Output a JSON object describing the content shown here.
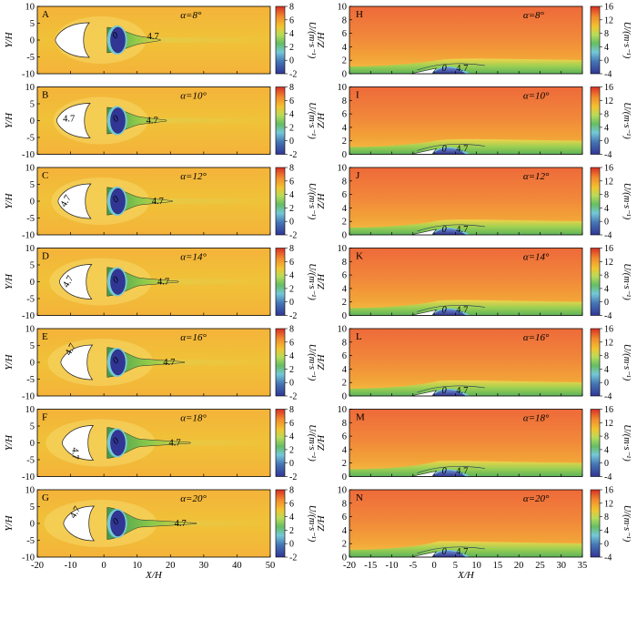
{
  "figure": {
    "left_column": {
      "xlabel": "X/H",
      "ylabel": "Y/H",
      "xticks": [
        -20,
        -10,
        0,
        10,
        20,
        30,
        40,
        50
      ],
      "yticks": [
        -10,
        -5,
        0,
        5,
        10
      ],
      "colorbar": {
        "label": "U/(m·s⁻¹)",
        "ticks": [
          -2,
          0,
          2,
          4,
          6,
          8
        ],
        "range": [
          -2,
          8
        ]
      },
      "panels": [
        {
          "letter": "A",
          "alpha": "α=8°",
          "labels": [
            "0",
            "4.7"
          ]
        },
        {
          "letter": "B",
          "alpha": "α=10°",
          "labels": [
            "4.7",
            "0",
            "4.7"
          ]
        },
        {
          "letter": "C",
          "alpha": "α=12°",
          "labels": [
            "4.7",
            "0",
            "4.7"
          ]
        },
        {
          "letter": "D",
          "alpha": "α=14°",
          "labels": [
            "4.7",
            "0",
            "4.7"
          ]
        },
        {
          "letter": "E",
          "alpha": "α=16°",
          "labels": [
            "4.7",
            "0",
            "4.7"
          ]
        },
        {
          "letter": "F",
          "alpha": "α=18°",
          "labels": [
            "4.7",
            "0",
            "4.7"
          ]
        },
        {
          "letter": "G",
          "alpha": "α=20°",
          "labels": [
            "4.7",
            "0",
            "4.7"
          ]
        }
      ]
    },
    "right_column": {
      "xlabel": "X/H",
      "ylabel": "Z/H",
      "xticks": [
        -20,
        -15,
        -10,
        -5,
        0,
        5,
        10,
        15,
        20,
        25,
        30,
        35
      ],
      "yticks": [
        0,
        2,
        4,
        6,
        8,
        10
      ],
      "colorbar": {
        "label": "U/(m·s⁻¹)",
        "ticks": [
          -4,
          0,
          4,
          8,
          12,
          16
        ],
        "range": [
          -4,
          16
        ]
      },
      "panels": [
        {
          "letter": "H",
          "alpha": "α=8°",
          "labels": [
            "0",
            "4.7"
          ]
        },
        {
          "letter": "I",
          "alpha": "α=10°",
          "labels": [
            "0",
            "4.7"
          ]
        },
        {
          "letter": "J",
          "alpha": "α=12°",
          "labels": [
            "0",
            "4.7"
          ]
        },
        {
          "letter": "K",
          "alpha": "α=14°",
          "labels": [
            "0",
            "4.7"
          ]
        },
        {
          "letter": "L",
          "alpha": "α=16°",
          "labels": [
            "0",
            "4.7"
          ]
        },
        {
          "letter": "M",
          "alpha": "α=18°",
          "labels": [
            "0",
            "4.7"
          ]
        },
        {
          "letter": "N",
          "alpha": "α=20°",
          "labels": [
            "0",
            "4.7"
          ]
        }
      ]
    },
    "colors": {
      "very_low": "#313695",
      "low": "#4575b4",
      "cyan": "#74c8d8",
      "green": "#66bd63",
      "lightgreen": "#b8dc5a",
      "yellow": "#f2c431",
      "orange": "#f28a2e",
      "red": "#d73027"
    }
  },
  "chart_data": [
    {
      "type": "heatmap",
      "field": "horizontal plane (X/H–Y/H)",
      "xlabel": "X/H",
      "ylabel": "Y/H",
      "xlim": [
        -20,
        50
      ],
      "ylim": [
        -10,
        10
      ],
      "colorbar": {
        "label": "U/(m·s⁻¹)",
        "range": [
          -2,
          8
        ]
      },
      "panels": [
        "A",
        "B",
        "C",
        "D",
        "E",
        "F",
        "G"
      ],
      "alpha_deg": [
        8,
        10,
        12,
        14,
        16,
        18,
        20
      ],
      "contour_levels": [
        0,
        4.7
      ]
    },
    {
      "type": "heatmap",
      "field": "vertical plane (X/H–Z/H)",
      "xlabel": "X/H",
      "ylabel": "Z/H",
      "xlim": [
        -20,
        35
      ],
      "ylim": [
        0,
        10
      ],
      "colorbar": {
        "label": "U/(m·s⁻¹)",
        "range": [
          -4,
          16
        ]
      },
      "panels": [
        "H",
        "I",
        "J",
        "K",
        "L",
        "M",
        "N"
      ],
      "alpha_deg": [
        8,
        10,
        12,
        14,
        16,
        18,
        20
      ],
      "contour_levels": [
        0,
        4.7
      ]
    }
  ]
}
